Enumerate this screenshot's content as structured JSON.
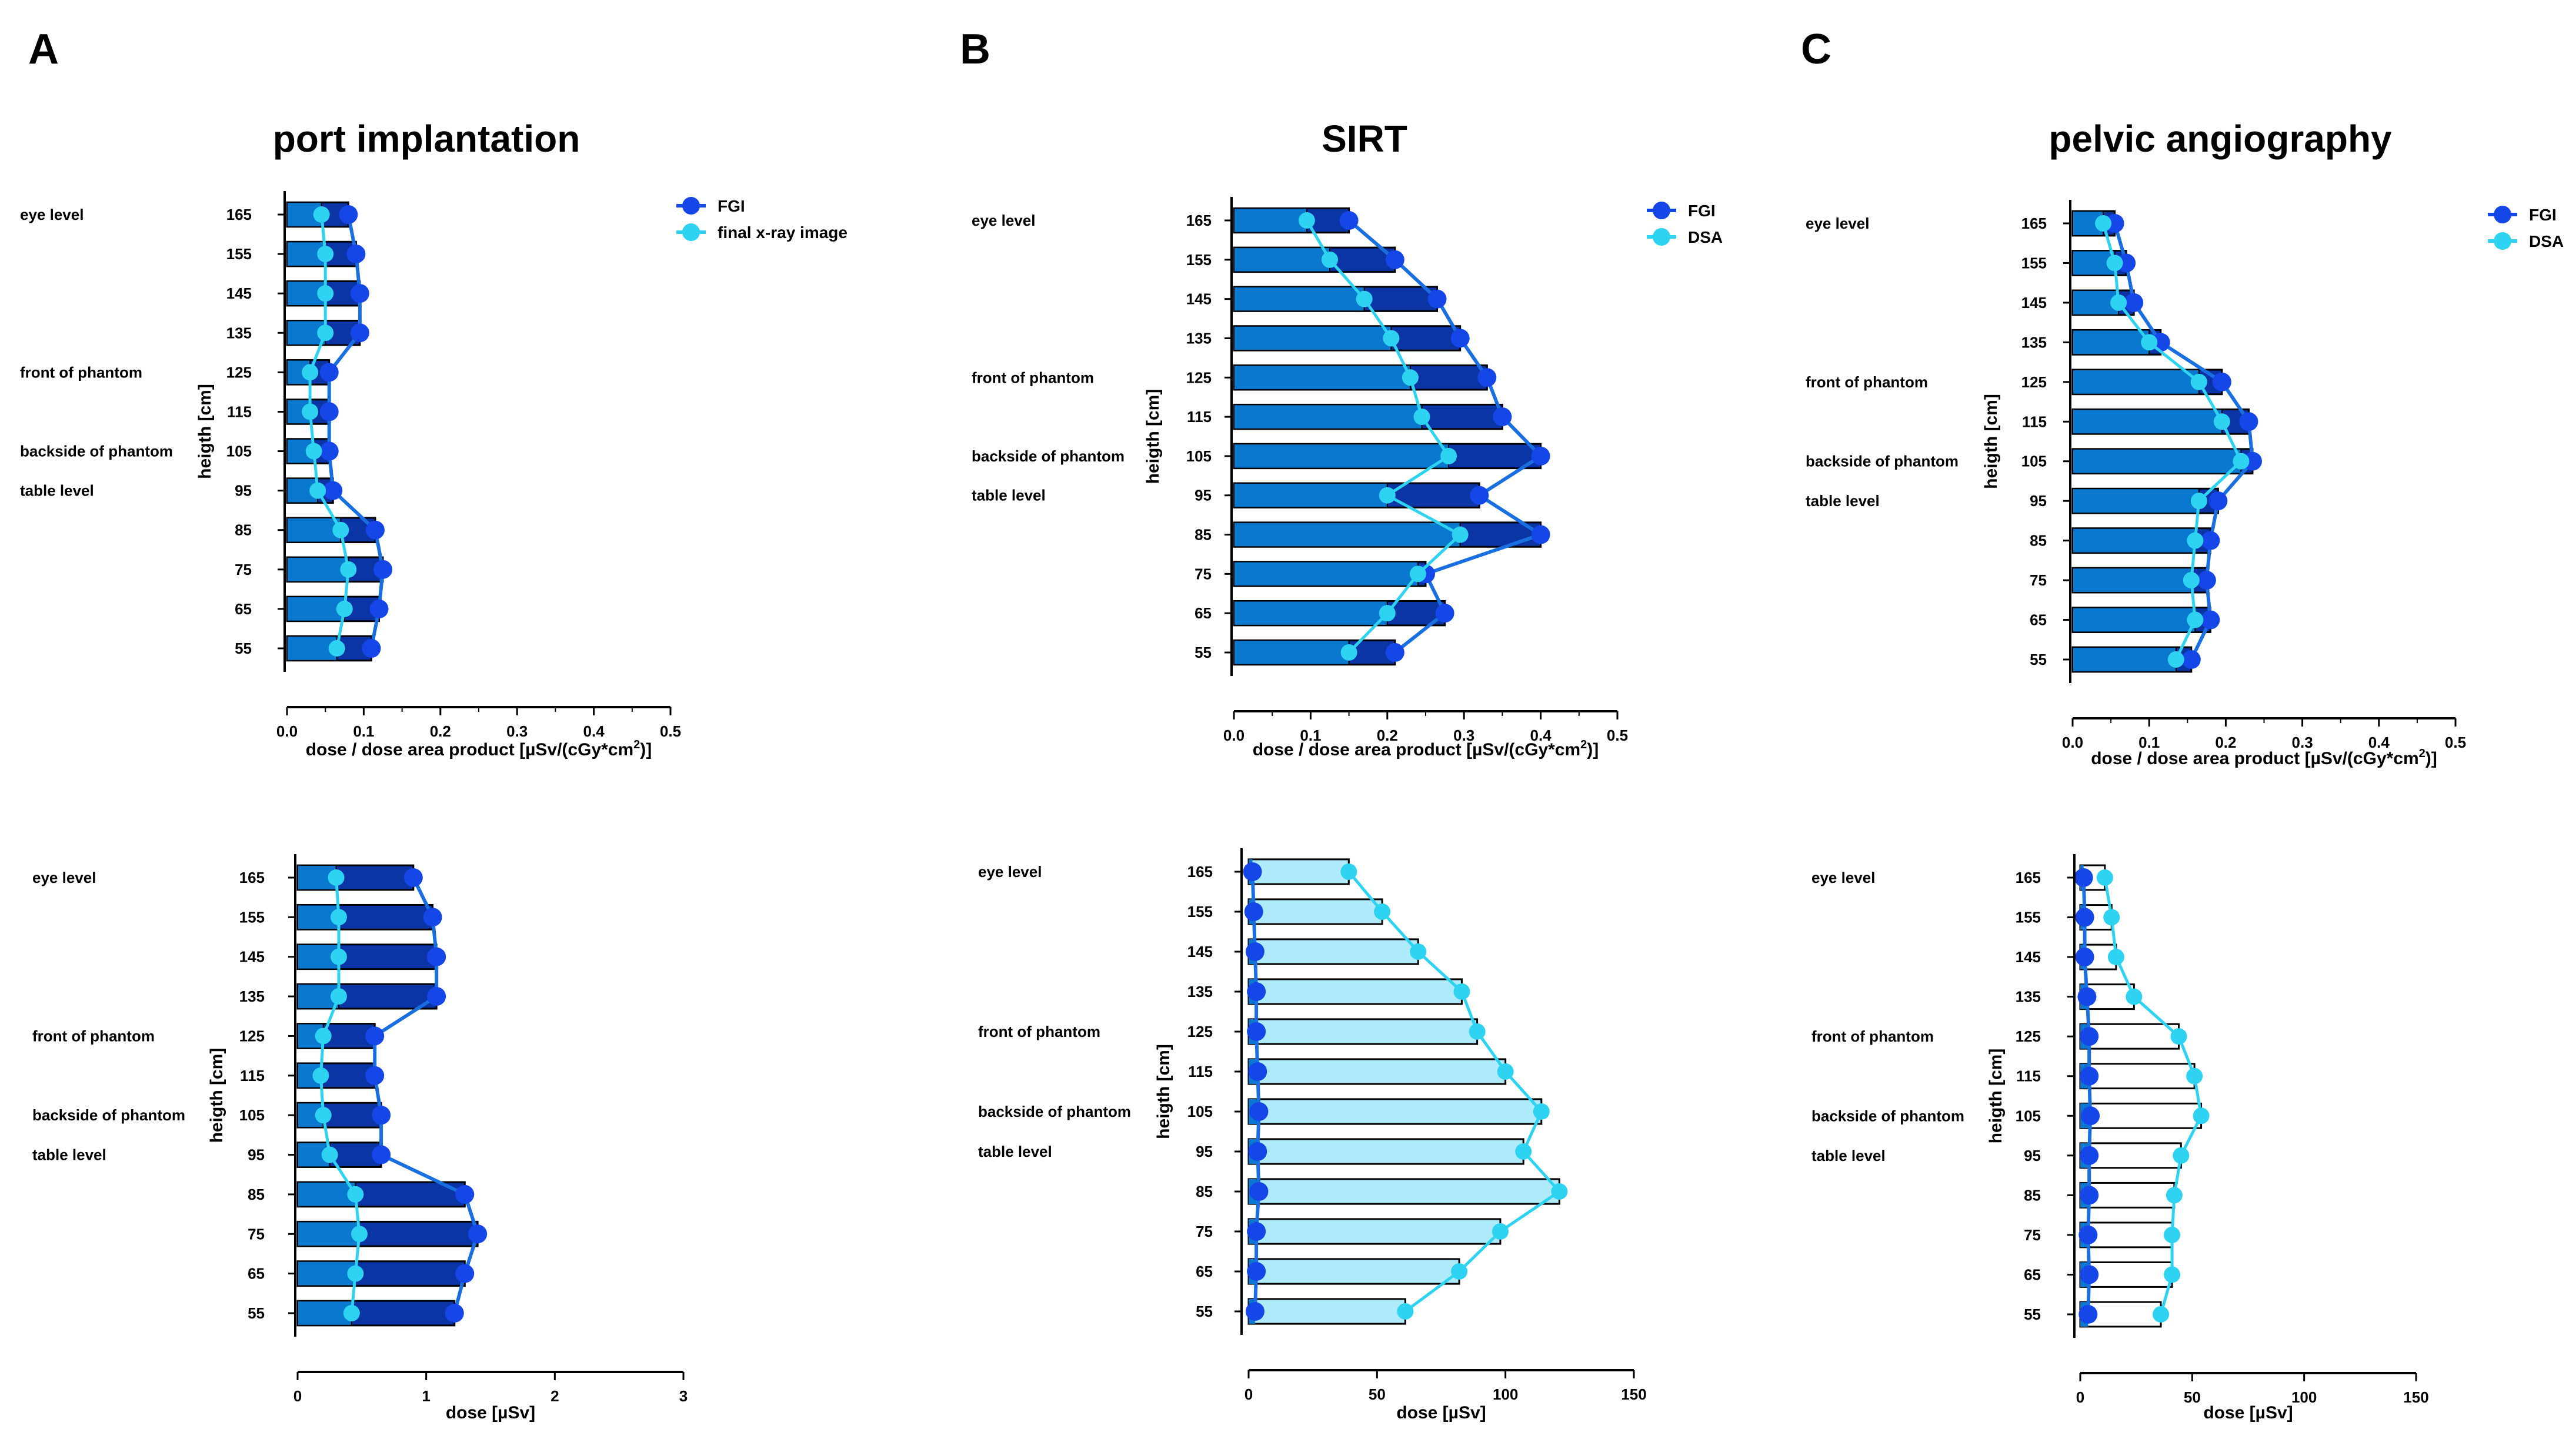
{
  "panels": [
    {
      "letter": "A",
      "title": "port implantation"
    },
    {
      "letter": "B",
      "title": "SIRT"
    },
    {
      "letter": "C",
      "title": "pelvic angiography"
    }
  ],
  "level_labels": {
    "eye": "eye level",
    "front": "front of phantom",
    "back": "backside of phantom",
    "table": "table level"
  },
  "colors": {
    "fgi": "#1547e8",
    "secondary": "#2fd3f2",
    "fgi_line": "#1a6fe0",
    "bar_dark": "#0b34a5",
    "bar_mid": "#0a78cf",
    "bar_light": "#aeeafa"
  },
  "chart_data": [
    {
      "type": "bar",
      "panel": "A",
      "row": "top",
      "orientation": "horizontal",
      "title": "port implantation",
      "categories": [
        "165",
        "155",
        "145",
        "135",
        "125",
        "115",
        "105",
        "95",
        "85",
        "75",
        "65",
        "55"
      ],
      "ylabel": "heigth [cm]",
      "xlabel": "dose / dose area product [µSv/(cGy*cm",
      "xlabel_sup": "2",
      "xlabel_end": ")]",
      "xlim": [
        0,
        0.5
      ],
      "xticks": [
        "0.0",
        "0.1",
        "0.2",
        "0.3",
        "0.4",
        "0.5"
      ],
      "series": [
        {
          "name": "FGI",
          "values": [
            0.08,
            0.09,
            0.095,
            0.095,
            0.055,
            0.055,
            0.055,
            0.06,
            0.115,
            0.125,
            0.12,
            0.11
          ]
        },
        {
          "name": "final x-ray image",
          "values": [
            0.045,
            0.05,
            0.05,
            0.05,
            0.03,
            0.03,
            0.035,
            0.04,
            0.07,
            0.08,
            0.075,
            0.065
          ]
        }
      ]
    },
    {
      "type": "bar",
      "panel": "B",
      "row": "top",
      "orientation": "horizontal",
      "title": "SIRT",
      "categories": [
        "165",
        "155",
        "145",
        "135",
        "125",
        "115",
        "105",
        "95",
        "85",
        "75",
        "65",
        "55"
      ],
      "ylabel": "heigth [cm]",
      "xlabel": "dose / dose area product [µSv/(cGy*cm",
      "xlabel_sup": "2",
      "xlabel_end": ")]",
      "xlim": [
        0,
        0.5
      ],
      "xticks": [
        "0.0",
        "0.1",
        "0.2",
        "0.3",
        "0.4",
        "0.5"
      ],
      "series": [
        {
          "name": "FGI",
          "values": [
            0.15,
            0.21,
            0.265,
            0.295,
            0.33,
            0.35,
            0.4,
            0.32,
            0.4,
            0.25,
            0.275,
            0.21
          ]
        },
        {
          "name": "DSA",
          "values": [
            0.095,
            0.125,
            0.17,
            0.205,
            0.23,
            0.245,
            0.28,
            0.2,
            0.295,
            0.24,
            0.2,
            0.15
          ]
        }
      ]
    },
    {
      "type": "bar",
      "panel": "C",
      "row": "top",
      "orientation": "horizontal",
      "title": "pelvic angiography",
      "categories": [
        "165",
        "155",
        "145",
        "135",
        "125",
        "115",
        "105",
        "95",
        "85",
        "75",
        "65",
        "55"
      ],
      "ylabel": "heigth [cm]",
      "xlabel": "dose / dose area product [µSv/(cGy*cm",
      "xlabel_sup": "2",
      "xlabel_end": ")]",
      "xlim": [
        0,
        0.5
      ],
      "xticks": [
        "0.0",
        "0.1",
        "0.2",
        "0.3",
        "0.4",
        "0.5"
      ],
      "series": [
        {
          "name": "FGI",
          "values": [
            0.055,
            0.07,
            0.08,
            0.115,
            0.195,
            0.23,
            0.235,
            0.19,
            0.18,
            0.175,
            0.18,
            0.155
          ]
        },
        {
          "name": "DSA",
          "values": [
            0.04,
            0.055,
            0.06,
            0.1,
            0.165,
            0.195,
            0.22,
            0.165,
            0.16,
            0.155,
            0.16,
            0.135
          ]
        }
      ]
    },
    {
      "type": "bar",
      "panel": "A",
      "row": "bottom",
      "orientation": "horizontal",
      "categories": [
        "165",
        "155",
        "145",
        "135",
        "125",
        "115",
        "105",
        "95",
        "85",
        "75",
        "65",
        "55"
      ],
      "ylabel": "heigth [cm]",
      "xlabel": "dose [µSv]",
      "xlim": [
        0,
        3
      ],
      "xticks": [
        "0",
        "1",
        "2",
        "3"
      ],
      "series": [
        {
          "name": "FGI",
          "values": [
            0.9,
            1.05,
            1.08,
            1.08,
            0.6,
            0.6,
            0.65,
            0.65,
            1.3,
            1.4,
            1.3,
            1.22
          ]
        },
        {
          "name": "final x-ray image",
          "values": [
            0.3,
            0.32,
            0.32,
            0.32,
            0.2,
            0.18,
            0.2,
            0.25,
            0.45,
            0.48,
            0.45,
            0.42
          ]
        }
      ]
    },
    {
      "type": "bar",
      "panel": "B",
      "row": "bottom",
      "orientation": "horizontal",
      "categories": [
        "165",
        "155",
        "145",
        "135",
        "125",
        "115",
        "105",
        "95",
        "85",
        "75",
        "65",
        "55"
      ],
      "ylabel": "heigth [cm]",
      "xlabel": "dose [µSv]",
      "xlim": [
        0,
        150
      ],
      "xticks": [
        "0",
        "50",
        "100",
        "150"
      ],
      "series": [
        {
          "name": "FGI",
          "values": [
            1.5,
            2,
            2.5,
            3,
            3,
            3.5,
            4,
            3.5,
            4,
            3,
            3,
            2.5
          ]
        },
        {
          "name": "DSA",
          "values": [
            39,
            52,
            66,
            83,
            89,
            100,
            114,
            107,
            121,
            98,
            82,
            61
          ]
        }
      ]
    },
    {
      "type": "bar",
      "panel": "C",
      "row": "bottom",
      "orientation": "horizontal",
      "categories": [
        "165",
        "155",
        "145",
        "135",
        "125",
        "115",
        "105",
        "95",
        "85",
        "75",
        "65",
        "55"
      ],
      "ylabel": "heigth [cm]",
      "xlabel": "dose [µSv]",
      "xlim": [
        0,
        150
      ],
      "xticks": [
        "0",
        "50",
        "100",
        "150"
      ],
      "series": [
        {
          "name": "FGI",
          "values": [
            1.5,
            2,
            2,
            3,
            4,
            4,
            4.5,
            4,
            4,
            3.5,
            4,
            3.5
          ]
        },
        {
          "name": "DSA",
          "values": [
            11,
            14,
            16,
            24,
            44,
            51,
            54,
            45,
            42,
            41,
            41,
            36
          ]
        }
      ]
    }
  ]
}
